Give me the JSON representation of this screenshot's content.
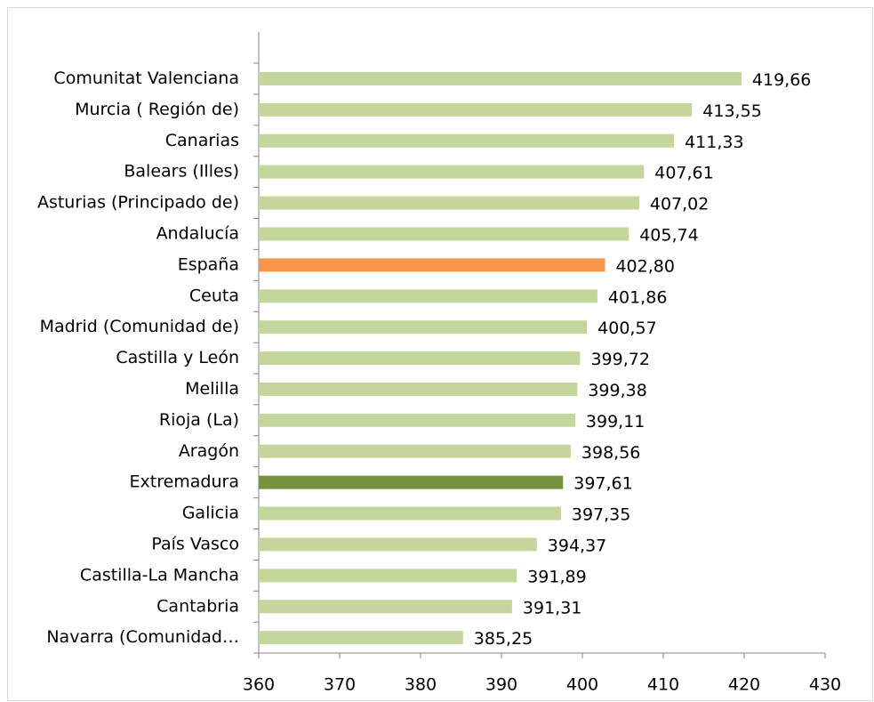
{
  "chart_data": {
    "type": "bar",
    "orientation": "horizontal",
    "categories": [
      "Comunitat Valenciana",
      "Murcia ( Región de)",
      "Canarias",
      "Balears (Illes)",
      "Asturias (Principado de)",
      "Andalucía",
      "España",
      "Ceuta",
      "Madrid (Comunidad de)",
      "Castilla y León",
      "Melilla",
      "Rioja (La)",
      "Aragón",
      "Extremadura",
      "Galicia",
      "País Vasco",
      "Castilla-La Mancha",
      "Cantabria",
      "Navarra (Comunidad…"
    ],
    "values": [
      419.66,
      413.55,
      411.33,
      407.61,
      407.02,
      405.74,
      402.8,
      401.86,
      400.57,
      399.72,
      399.38,
      399.11,
      398.56,
      397.61,
      397.35,
      394.37,
      391.89,
      391.31,
      385.25
    ],
    "value_labels": [
      "419,66",
      "413,55",
      "411,33",
      "407,61",
      "407,02",
      "405,74",
      "402,80",
      "401,86",
      "400,57",
      "399,72",
      "399,38",
      "399,11",
      "398,56",
      "397,61",
      "397,35",
      "394,37",
      "391,89",
      "391,31",
      "385,25"
    ],
    "colors": [
      "#c3d69b",
      "#c3d69b",
      "#c3d69b",
      "#c3d69b",
      "#c3d69b",
      "#c3d69b",
      "#f79646",
      "#c3d69b",
      "#c3d69b",
      "#c3d69b",
      "#c3d69b",
      "#c3d69b",
      "#c3d69b",
      "#76923c",
      "#c3d69b",
      "#c3d69b",
      "#c3d69b",
      "#c3d69b",
      "#c3d69b"
    ],
    "xlim": [
      360,
      430
    ],
    "xticks": [
      360,
      370,
      380,
      390,
      400,
      410,
      420,
      430
    ]
  }
}
